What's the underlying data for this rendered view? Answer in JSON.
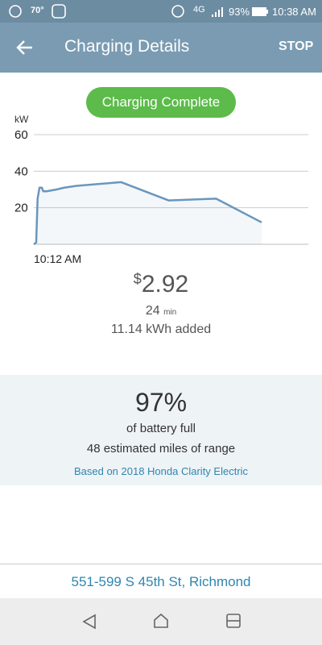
{
  "status_bar": {
    "temperature": "70°",
    "network": "4G",
    "battery": "93%",
    "time": "10:38 AM"
  },
  "app_bar": {
    "title": "Charging Details",
    "action": "STOP"
  },
  "status_button": "Charging Complete",
  "chart_data": {
    "type": "line",
    "y_label": "kW",
    "x": [
      0,
      0.25,
      0.4,
      0.6,
      0.85,
      1.0,
      1.35,
      2.4,
      3.2,
      4.5,
      9.2,
      14.2,
      19.2,
      24
    ],
    "values": [
      0,
      1,
      25,
      31,
      31,
      29,
      29,
      30,
      31,
      32,
      34,
      24,
      25,
      12
    ],
    "color": "#6a96bd",
    "xlim": [
      0,
      24
    ],
    "xticks": [
      {
        "value": 0,
        "label": "10:12 AM"
      }
    ],
    "ylim": [
      0,
      60
    ],
    "yticks": [
      20,
      40,
      60
    ],
    "grid": true
  },
  "session": {
    "currency": "$",
    "cost": "2.92",
    "duration": "24",
    "duration_unit": "min",
    "energy": "11.14 kWh added"
  },
  "battery": {
    "percent": "97%",
    "label": "of battery full",
    "range": "48 estimated miles of range",
    "basis": "Based on 2018 Honda Clarity Electric"
  },
  "location": "551-599 S 45th St, Richmond"
}
